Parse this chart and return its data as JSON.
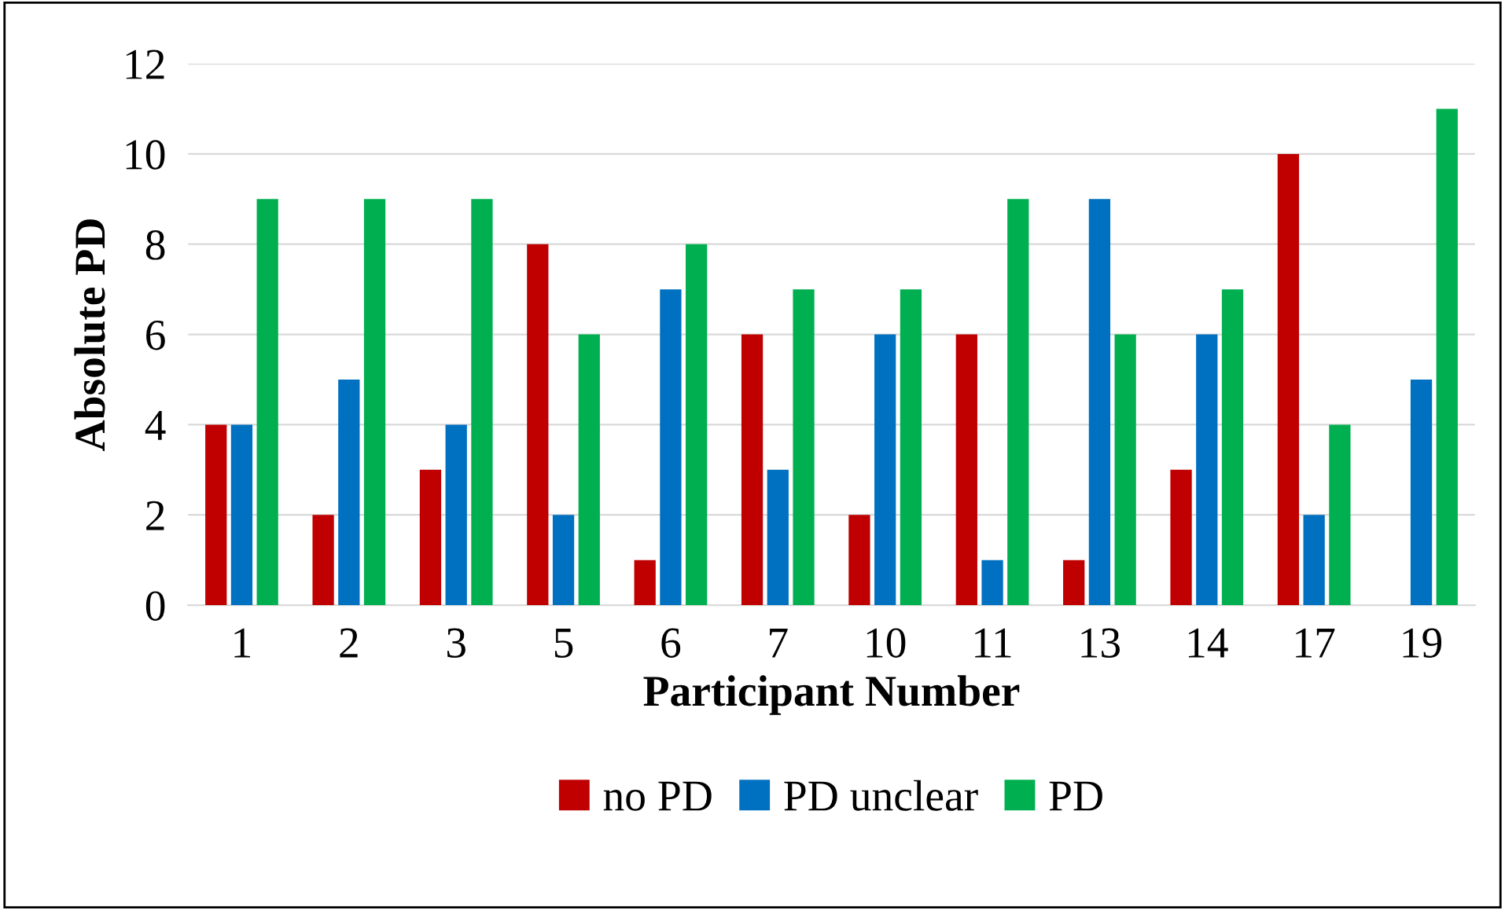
{
  "chart_data": {
    "type": "bar",
    "xlabel": "Participant Number",
    "ylabel": "Absolute PD",
    "categories": [
      "1",
      "2",
      "3",
      "5",
      "6",
      "7",
      "10",
      "11",
      "13",
      "14",
      "17",
      "19"
    ],
    "series": [
      {
        "name": "no PD",
        "color": "#c00000",
        "values": [
          4,
          2,
          3,
          8,
          1,
          6,
          2,
          6,
          1,
          3,
          10,
          0
        ]
      },
      {
        "name": "PD unclear",
        "color": "#0070c0",
        "values": [
          4,
          5,
          4,
          2,
          7,
          3,
          6,
          1,
          9,
          6,
          2,
          5
        ]
      },
      {
        "name": "PD",
        "color": "#00b050",
        "values": [
          9,
          9,
          9,
          6,
          8,
          7,
          7,
          9,
          6,
          7,
          4,
          11
        ]
      }
    ],
    "ylim": [
      0,
      12
    ],
    "yticks": [
      0,
      2,
      4,
      6,
      8,
      10,
      12
    ],
    "grid": "y",
    "legend": "bottom"
  }
}
